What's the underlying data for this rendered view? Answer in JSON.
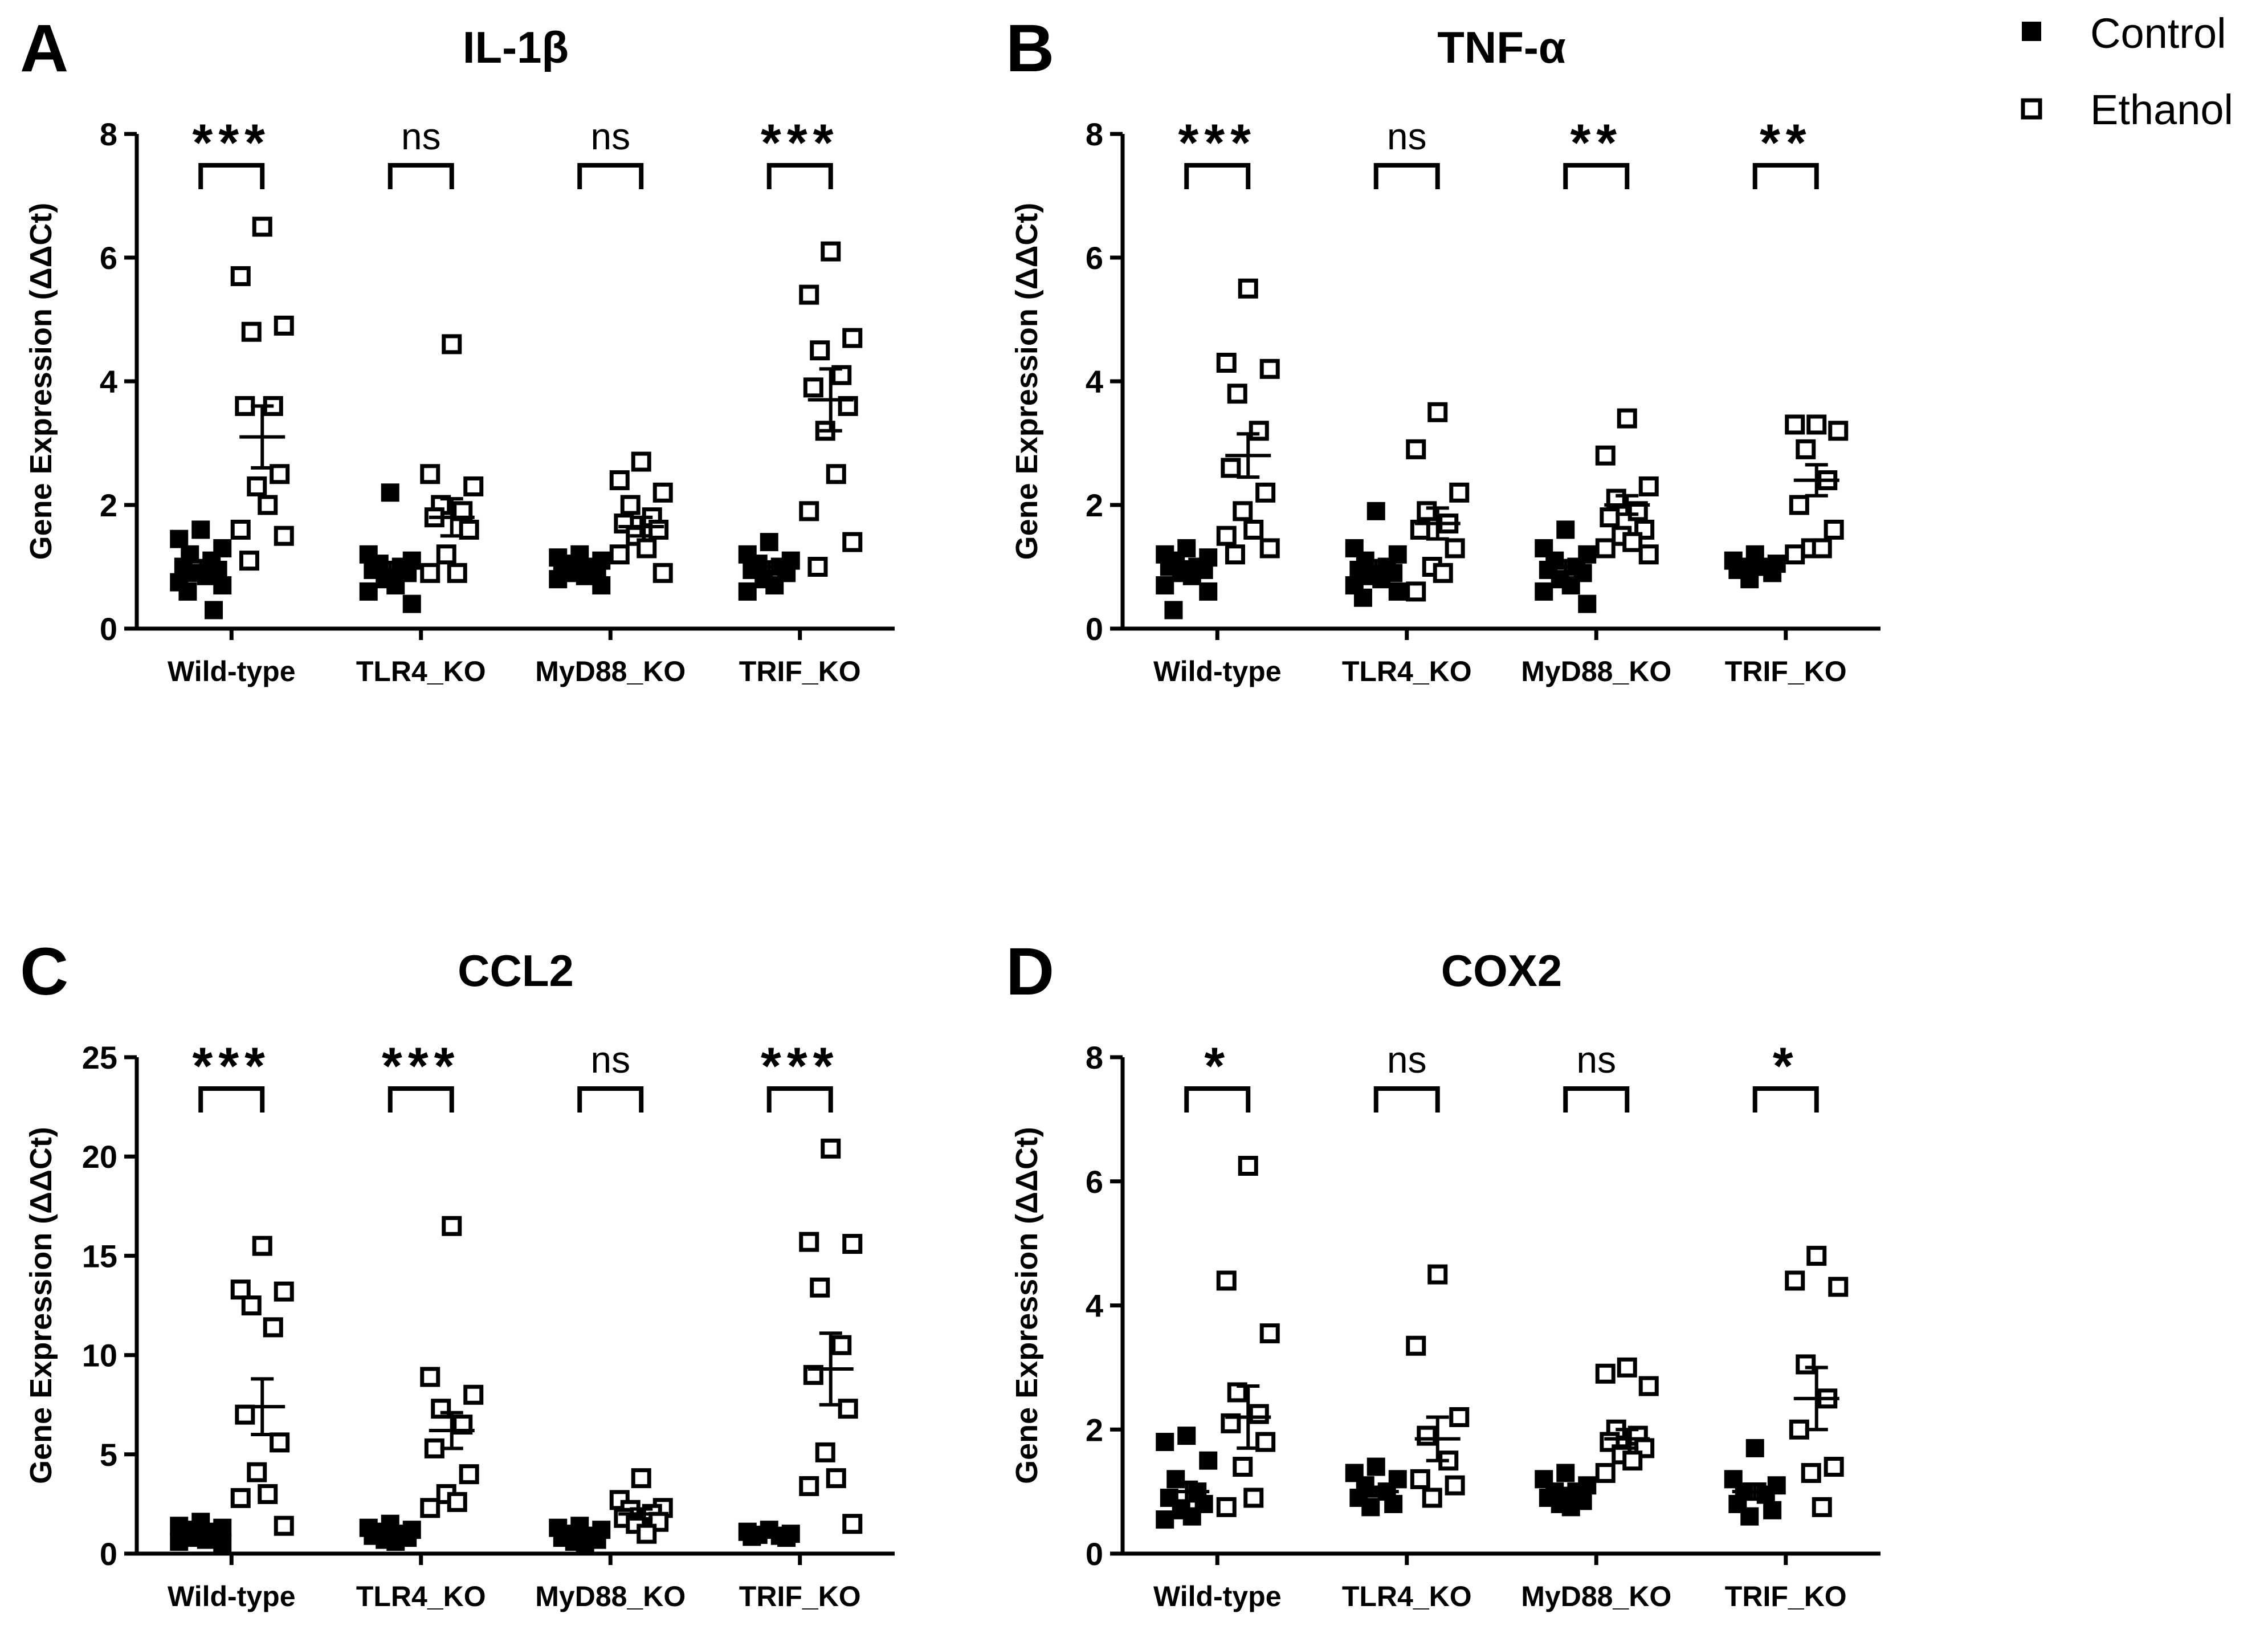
{
  "legend": [
    {
      "label": "Control",
      "marker": "filled-square"
    },
    {
      "label": "Ethanol",
      "marker": "open-square"
    }
  ],
  "colors": {
    "ink": "#000000",
    "background": "#ffffff"
  },
  "chart_data": [
    {
      "type": "scatter",
      "panel": "A",
      "title": "IL-1β",
      "ylabel": "Gene Expression (ΔΔCt)",
      "xlabel": "",
      "categories": [
        "Wild-type",
        "TLR4_KO",
        "MyD88_KO",
        "TRIF_KO"
      ],
      "ylim": [
        0,
        8
      ],
      "yticks": [
        0,
        2,
        4,
        6,
        8
      ],
      "significance": [
        "***",
        "ns",
        "ns",
        "***"
      ],
      "series": [
        {
          "name": "Control",
          "marker": "filled-square",
          "mean": [
            1.0,
            0.95,
            1.0,
            1.0
          ],
          "sem": [
            0.1,
            0.12,
            0.05,
            0.08
          ],
          "points": [
            [
              1.6,
              1.45,
              1.3,
              1.2,
              1.1,
              1.0,
              0.95,
              0.9,
              0.85,
              0.75,
              0.7,
              0.6,
              0.3
            ],
            [
              2.2,
              1.2,
              1.1,
              1.05,
              1.0,
              0.95,
              0.9,
              0.8,
              0.7,
              0.6,
              0.4
            ],
            [
              1.2,
              1.15,
              1.1,
              1.05,
              1.0,
              1.0,
              0.95,
              0.9,
              0.85,
              0.8,
              0.7
            ],
            [
              1.4,
              1.2,
              1.1,
              1.05,
              1.0,
              0.95,
              0.9,
              0.8,
              0.7,
              0.6
            ]
          ]
        },
        {
          "name": "Ethanol",
          "marker": "open-square",
          "mean": [
            3.1,
            1.8,
            1.65,
            3.7
          ],
          "sem": [
            0.5,
            0.3,
            0.15,
            0.5
          ],
          "points": [
            [
              6.5,
              5.7,
              4.9,
              4.8,
              3.6,
              3.6,
              2.5,
              2.3,
              2.0,
              1.6,
              1.5,
              1.1
            ],
            [
              4.6,
              2.5,
              2.3,
              2.0,
              1.9,
              1.8,
              1.6,
              1.2,
              0.9,
              0.9
            ],
            [
              2.7,
              2.4,
              2.2,
              2.0,
              1.8,
              1.7,
              1.6,
              1.5,
              1.3,
              1.2,
              0.9
            ],
            [
              6.1,
              5.4,
              4.7,
              4.5,
              4.1,
              3.9,
              3.6,
              3.2,
              2.5,
              1.9,
              1.4,
              1.0
            ]
          ]
        }
      ]
    },
    {
      "type": "scatter",
      "panel": "B",
      "title": "TNF-α",
      "ylabel": "Gene Expression (ΔΔCt)",
      "xlabel": "",
      "categories": [
        "Wild-type",
        "TLR4_KO",
        "MyD88_KO",
        "TRIF_KO"
      ],
      "ylim": [
        0,
        8
      ],
      "yticks": [
        0,
        2,
        4,
        6,
        8
      ],
      "significance": [
        "***",
        "ns",
        "**",
        "**"
      ],
      "series": [
        {
          "name": "Control",
          "marker": "filled-square",
          "mean": [
            1.0,
            1.0,
            1.0,
            1.0
          ],
          "sem": [
            0.08,
            0.1,
            0.1,
            0.05
          ],
          "points": [
            [
              1.3,
              1.2,
              1.15,
              1.1,
              1.0,
              1.0,
              0.95,
              0.9,
              0.85,
              0.7,
              0.6,
              0.3
            ],
            [
              1.9,
              1.3,
              1.2,
              1.1,
              1.0,
              0.95,
              0.9,
              0.85,
              0.8,
              0.7,
              0.6,
              0.5
            ],
            [
              1.6,
              1.3,
              1.2,
              1.1,
              1.0,
              0.95,
              0.9,
              0.8,
              0.7,
              0.6,
              0.4
            ],
            [
              1.2,
              1.1,
              1.05,
              1.0,
              1.0,
              0.95,
              0.9,
              0.8
            ]
          ]
        },
        {
          "name": "Ethanol",
          "marker": "open-square",
          "mean": [
            2.8,
            1.7,
            2.0,
            2.4
          ],
          "sem": [
            0.35,
            0.25,
            0.15,
            0.25
          ],
          "points": [
            [
              5.5,
              4.3,
              4.2,
              3.8,
              3.2,
              2.6,
              2.2,
              1.9,
              1.6,
              1.5,
              1.3,
              1.2
            ],
            [
              3.5,
              2.9,
              2.2,
              1.9,
              1.7,
              1.6,
              1.3,
              1.0,
              0.9,
              0.6
            ],
            [
              3.4,
              2.8,
              2.3,
              2.1,
              1.9,
              1.8,
              1.6,
              1.5,
              1.4,
              1.3,
              1.2
            ],
            [
              3.3,
              3.3,
              3.2,
              2.9,
              2.4,
              2.0,
              1.6,
              1.3,
              1.3,
              1.2
            ]
          ]
        }
      ]
    },
    {
      "type": "scatter",
      "panel": "C",
      "title": "CCL2",
      "ylabel": "Gene Expression (ΔΔCt)",
      "xlabel": "",
      "categories": [
        "Wild-type",
        "TLR4_KO",
        "MyD88_KO",
        "TRIF_KO"
      ],
      "ylim": [
        0,
        25
      ],
      "yticks": [
        0,
        5,
        10,
        15,
        20,
        25
      ],
      "significance": [
        "***",
        "***",
        "ns",
        "***"
      ],
      "series": [
        {
          "name": "Control",
          "marker": "filled-square",
          "mean": [
            1.0,
            1.0,
            1.0,
            1.0
          ],
          "sem": [
            0.1,
            0.1,
            0.08,
            0.05
          ],
          "points": [
            [
              1.6,
              1.4,
              1.3,
              1.2,
              1.1,
              1.0,
              0.9,
              0.8,
              0.7,
              0.6,
              0.5
            ],
            [
              1.5,
              1.3,
              1.2,
              1.1,
              1.0,
              0.9,
              0.8,
              0.7,
              0.6
            ],
            [
              1.4,
              1.3,
              1.2,
              1.0,
              0.9,
              0.8,
              0.7,
              0.6,
              0.5
            ],
            [
              1.2,
              1.1,
              1.0,
              0.95,
              0.9,
              0.85,
              0.8
            ]
          ]
        },
        {
          "name": "Ethanol",
          "marker": "open-square",
          "mean": [
            7.4,
            6.2,
            2.0,
            9.3
          ],
          "sem": [
            1.4,
            0.9,
            0.25,
            1.8
          ],
          "points": [
            [
              15.5,
              13.3,
              13.2,
              12.5,
              11.4,
              7.0,
              5.6,
              4.1,
              3.0,
              2.8,
              1.4
            ],
            [
              16.5,
              8.9,
              8.0,
              7.3,
              6.5,
              5.3,
              4.0,
              3.0,
              2.6,
              2.3
            ],
            [
              3.8,
              2.7,
              2.3,
              2.2,
              2.0,
              1.8,
              1.6,
              1.5,
              1.0
            ],
            [
              20.4,
              15.7,
              15.6,
              13.4,
              10.5,
              9.0,
              7.3,
              5.1,
              3.8,
              3.4,
              1.5
            ]
          ]
        }
      ]
    },
    {
      "type": "scatter",
      "panel": "D",
      "title": "COX2",
      "ylabel": "Gene Expression (ΔΔCt)",
      "xlabel": "",
      "categories": [
        "Wild-type",
        "TLR4_KO",
        "MyD88_KO",
        "TRIF_KO"
      ],
      "ylim": [
        0,
        8
      ],
      "yticks": [
        0,
        2,
        4,
        6,
        8
      ],
      "significance": [
        "*",
        "ns",
        "ns",
        "*"
      ],
      "series": [
        {
          "name": "Control",
          "marker": "filled-square",
          "mean": [
            1.0,
            1.0,
            1.0,
            1.0
          ],
          "sem": [
            0.15,
            0.07,
            0.05,
            0.12
          ],
          "points": [
            [
              1.9,
              1.8,
              1.5,
              1.2,
              1.0,
              0.9,
              0.8,
              0.7,
              0.6,
              0.55
            ],
            [
              1.4,
              1.3,
              1.2,
              1.1,
              1.0,
              0.9,
              0.8,
              0.75
            ],
            [
              1.3,
              1.2,
              1.1,
              1.0,
              1.0,
              0.9,
              0.85,
              0.8,
              0.75
            ],
            [
              1.7,
              1.2,
              1.1,
              1.0,
              0.95,
              0.8,
              0.7,
              0.6
            ]
          ]
        },
        {
          "name": "Ethanol",
          "marker": "open-square",
          "mean": [
            2.2,
            1.85,
            1.85,
            2.5
          ],
          "sem": [
            0.5,
            0.35,
            0.15,
            0.5
          ],
          "points": [
            [
              6.25,
              4.4,
              3.55,
              2.6,
              2.25,
              2.1,
              1.8,
              1.4,
              0.9,
              0.75
            ],
            [
              4.5,
              3.35,
              2.2,
              1.9,
              1.5,
              1.2,
              1.1,
              0.9
            ],
            [
              3.0,
              2.9,
              2.7,
              2.0,
              1.9,
              1.8,
              1.7,
              1.6,
              1.5,
              1.3
            ],
            [
              4.8,
              4.4,
              4.3,
              3.05,
              2.5,
              2.0,
              1.4,
              1.3,
              0.75
            ]
          ]
        }
      ]
    }
  ]
}
